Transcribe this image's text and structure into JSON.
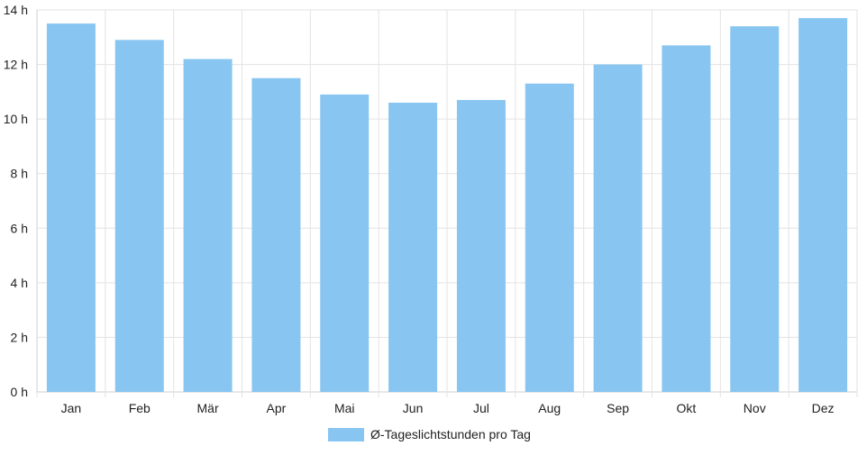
{
  "chart_data": {
    "type": "bar",
    "categories": [
      "Jan",
      "Feb",
      "Mär",
      "Apr",
      "Mai",
      "Jun",
      "Jul",
      "Aug",
      "Sep",
      "Okt",
      "Nov",
      "Dez"
    ],
    "series": [
      {
        "name": "Ø-Tageslichtstunden pro Tag",
        "values": [
          13.5,
          12.9,
          12.2,
          11.5,
          10.9,
          10.6,
          10.7,
          11.3,
          12.0,
          12.7,
          13.4,
          13.7
        ],
        "color": "#88c6f1"
      }
    ],
    "y_ticks": [
      "0 h",
      "2 h",
      "4 h",
      "6 h",
      "8 h",
      "10 h",
      "12 h",
      "14 h"
    ],
    "ylim": [
      0,
      14
    ],
    "grid": true,
    "legend_position": "bottom-center"
  }
}
